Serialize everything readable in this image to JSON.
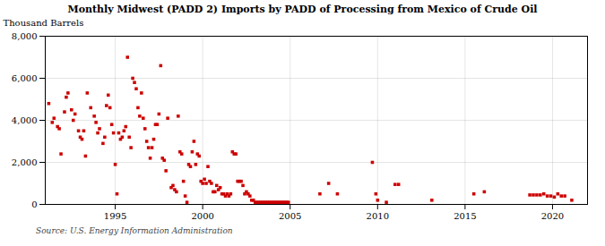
{
  "chart_data": {
    "type": "scatter",
    "title": "Monthly Midwest (PADD 2) Imports by PADD of Processing from Mexico of Crude Oil",
    "ylabel": "Thousand Barrels",
    "source": "Source: U.S. Energy Information Administration",
    "color": "#cc0000",
    "marker": "square",
    "grid": true,
    "xlim": [
      1991.0,
      2022.0
    ],
    "ylim": [
      0,
      8000
    ],
    "xticks": [
      1995,
      2000,
      2005,
      2010,
      2015,
      2020
    ],
    "yticks": [
      0,
      {
        "value": 2000,
        "label": "2,000"
      },
      {
        "value": 4000,
        "label": "4,000"
      },
      {
        "value": 6000,
        "label": "6,000"
      },
      {
        "value": 8000,
        "label": "8,000"
      }
    ],
    "x": [
      1991.2,
      1991.4,
      1991.5,
      1991.7,
      1991.8,
      1991.9,
      1992.1,
      1992.2,
      1992.3,
      1992.5,
      1992.6,
      1992.7,
      1992.9,
      1993.0,
      1993.1,
      1993.2,
      1993.3,
      1993.4,
      1993.6,
      1993.8,
      1993.9,
      1994.0,
      1994.1,
      1994.3,
      1994.4,
      1994.5,
      1994.6,
      1994.7,
      1994.8,
      1994.9,
      1995.0,
      1995.1,
      1995.2,
      1995.3,
      1995.4,
      1995.5,
      1995.6,
      1995.7,
      1995.8,
      1995.9,
      1996.0,
      1996.1,
      1996.2,
      1996.3,
      1996.4,
      1996.5,
      1996.6,
      1996.7,
      1996.8,
      1996.9,
      1997.0,
      1997.1,
      1997.2,
      1997.3,
      1997.4,
      1997.5,
      1997.6,
      1997.7,
      1997.8,
      1997.9,
      1998.0,
      1998.2,
      1998.3,
      1998.4,
      1998.5,
      1998.6,
      1998.7,
      1998.8,
      1998.9,
      1999.0,
      1999.1,
      1999.2,
      1999.3,
      1999.4,
      1999.5,
      1999.6,
      1999.7,
      1999.8,
      1999.9,
      2000.0,
      2000.1,
      2000.2,
      2000.3,
      2000.4,
      2000.5,
      2000.6,
      2000.7,
      2000.8,
      2000.9,
      2001.0,
      2001.1,
      2001.2,
      2001.3,
      2001.4,
      2001.5,
      2001.6,
      2001.7,
      2001.8,
      2001.9,
      2002.0,
      2002.1,
      2002.2,
      2002.3,
      2002.4,
      2002.5,
      2002.6,
      2002.7,
      2002.8,
      2002.9,
      2003.0,
      2003.1,
      2003.2,
      2003.3,
      2003.4,
      2003.5,
      2003.6,
      2003.7,
      2003.8,
      2003.9,
      2004.0,
      2004.1,
      2004.2,
      2004.3,
      2004.4,
      2004.5,
      2004.6,
      2004.7,
      2004.8,
      2004.9,
      2006.7,
      2007.2,
      2007.7,
      2009.7,
      2009.9,
      2010.0,
      2010.5,
      2011.0,
      2011.2,
      2013.1,
      2015.5,
      2016.1,
      2018.7,
      2018.9,
      2019.1,
      2019.3,
      2019.5,
      2019.7,
      2019.9,
      2020.1,
      2020.3,
      2020.5,
      2020.7,
      2021.1
    ],
    "values": [
      4800,
      3900,
      4100,
      3700,
      3600,
      2400,
      4400,
      5100,
      5300,
      4500,
      4000,
      4300,
      3500,
      3200,
      3100,
      3500,
      2300,
      5300,
      4600,
      4200,
      3900,
      3400,
      3600,
      2900,
      3200,
      4700,
      5200,
      4600,
      3800,
      3400,
      1900,
      500,
      3400,
      3100,
      3200,
      3500,
      3700,
      7000,
      3200,
      2700,
      6000,
      5800,
      5500,
      4600,
      4200,
      5300,
      4100,
      3600,
      3000,
      2700,
      2200,
      2700,
      3100,
      3800,
      3800,
      4300,
      6600,
      2200,
      2100,
      1600,
      4100,
      800,
      900,
      700,
      600,
      4200,
      2500,
      2400,
      1100,
      400,
      100,
      1900,
      1800,
      2500,
      3000,
      1900,
      2400,
      2300,
      1100,
      1000,
      1200,
      1000,
      1800,
      1100,
      1000,
      600,
      600,
      900,
      700,
      800,
      500,
      500,
      400,
      500,
      400,
      500,
      2500,
      2400,
      2400,
      1100,
      1100,
      1100,
      900,
      500,
      600,
      500,
      400,
      200,
      200,
      100,
      100,
      100,
      100,
      100,
      100,
      100,
      100,
      100,
      100,
      100,
      100,
      100,
      100,
      100,
      100,
      100,
      100,
      100,
      100,
      500,
      1000,
      500,
      2000,
      500,
      200,
      100,
      950,
      950,
      200,
      500,
      600,
      450,
      450,
      450,
      450,
      500,
      400,
      400,
      350,
      500,
      400,
      400,
      200
    ]
  }
}
